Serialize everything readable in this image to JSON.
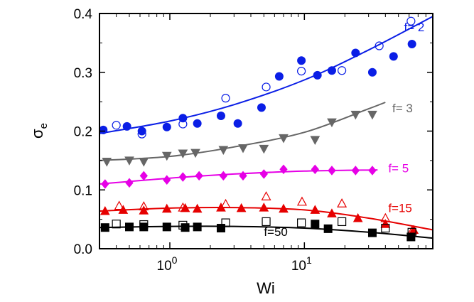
{
  "chart_data": {
    "type": "scatter",
    "title": "",
    "xlabel": "Wi",
    "ylabel_base": "σ",
    "ylabel_sub": "e",
    "x_scale": "log",
    "xlim": [
      0.3,
      90
    ],
    "ylim": [
      0,
      0.4
    ],
    "grid": false,
    "legend": "none",
    "x_tick_labels": [
      {
        "value": 1,
        "base": "10",
        "exp": "0"
      },
      {
        "value": 10,
        "base": "10",
        "exp": "1"
      }
    ],
    "y_ticks": [
      0.0,
      0.1,
      0.2,
      0.3,
      0.4
    ],
    "y_tick_labels": [
      "0.0",
      "0.1",
      "0.2",
      "0.3",
      "0.4"
    ],
    "series": [
      {
        "name": "f= 2",
        "color": "#0a1ee6",
        "label_at": [
          55,
          0.37
        ],
        "filled_marker": "circle",
        "filled": [
          [
            0.32,
            0.202
          ],
          [
            0.48,
            0.208
          ],
          [
            0.62,
            0.2
          ],
          [
            0.95,
            0.207
          ],
          [
            1.25,
            0.222
          ],
          [
            1.6,
            0.213
          ],
          [
            2.4,
            0.226
          ],
          [
            3.2,
            0.213
          ],
          [
            4.8,
            0.24
          ],
          [
            6.5,
            0.293
          ],
          [
            9.5,
            0.32
          ],
          [
            12.5,
            0.295
          ],
          [
            16,
            0.303
          ],
          [
            24,
            0.333
          ],
          [
            32,
            0.3
          ],
          [
            46,
            0.327
          ],
          [
            63,
            0.348
          ]
        ],
        "open_marker": "circle",
        "open": [
          [
            0.4,
            0.21
          ],
          [
            0.62,
            0.195
          ],
          [
            1.25,
            0.212
          ],
          [
            2.6,
            0.256
          ],
          [
            5.2,
            0.275
          ],
          [
            9.5,
            0.302
          ],
          [
            19,
            0.303
          ],
          [
            36,
            0.345
          ],
          [
            62,
            0.387
          ]
        ],
        "fit": [
          [
            0.3,
            0.196
          ],
          [
            1,
            0.217
          ],
          [
            3,
            0.245
          ],
          [
            10,
            0.287
          ],
          [
            30,
            0.338
          ],
          [
            90,
            0.395
          ]
        ]
      },
      {
        "name": "f= 3",
        "color": "#666666",
        "label_at": [
          45,
          0.232
        ],
        "filled_marker": "triangle-down",
        "filled": [
          [
            0.34,
            0.148
          ],
          [
            0.5,
            0.15
          ],
          [
            0.64,
            0.148
          ],
          [
            0.95,
            0.158
          ],
          [
            1.25,
            0.162
          ],
          [
            1.55,
            0.163
          ],
          [
            2.5,
            0.168
          ],
          [
            3.5,
            0.171
          ],
          [
            5,
            0.17
          ],
          [
            7,
            0.188
          ],
          [
            12,
            0.185
          ],
          [
            16,
            0.215
          ],
          [
            24,
            0.228
          ],
          [
            32,
            0.228
          ]
        ],
        "open_marker": "none",
        "open": [],
        "fit": [
          [
            0.3,
            0.15
          ],
          [
            1,
            0.157
          ],
          [
            3,
            0.173
          ],
          [
            10,
            0.198
          ],
          [
            30,
            0.238
          ],
          [
            40,
            0.249
          ]
        ]
      },
      {
        "name": "f= 5",
        "color": "#e600e6",
        "label_at": [
          42,
          0.13
        ],
        "filled_marker": "diamond",
        "filled": [
          [
            0.33,
            0.11
          ],
          [
            0.5,
            0.112
          ],
          [
            0.64,
            0.124
          ],
          [
            0.95,
            0.117
          ],
          [
            1.25,
            0.122
          ],
          [
            1.65,
            0.124
          ],
          [
            2.5,
            0.124
          ],
          [
            3.5,
            0.124
          ],
          [
            5,
            0.127
          ],
          [
            7,
            0.135
          ],
          [
            12,
            0.135
          ],
          [
            16,
            0.133
          ],
          [
            24,
            0.133
          ],
          [
            32,
            0.133
          ]
        ],
        "open_marker": "none",
        "open": [],
        "fit": [
          [
            0.3,
            0.11
          ],
          [
            1,
            0.12
          ],
          [
            3,
            0.127
          ],
          [
            10,
            0.132
          ],
          [
            35,
            0.134
          ]
        ]
      },
      {
        "name": "f=15",
        "color": "#e60000",
        "label_at": [
          42,
          0.062
        ],
        "filled_marker": "triangle",
        "filled": [
          [
            0.33,
            0.064
          ],
          [
            0.45,
            0.066
          ],
          [
            0.64,
            0.065
          ],
          [
            0.95,
            0.068
          ],
          [
            1.3,
            0.069
          ],
          [
            1.6,
            0.068
          ],
          [
            2.4,
            0.07
          ],
          [
            3.4,
            0.069
          ],
          [
            5,
            0.07
          ],
          [
            7,
            0.068
          ],
          [
            12,
            0.066
          ],
          [
            16,
            0.06
          ],
          [
            25,
            0.052
          ],
          [
            40,
            0.042
          ],
          [
            65,
            0.032
          ]
        ],
        "open_marker": "triangle",
        "open": [
          [
            0.42,
            0.073
          ],
          [
            0.64,
            0.072
          ],
          [
            1.25,
            0.07
          ],
          [
            2.6,
            0.076
          ],
          [
            5.2,
            0.089
          ],
          [
            9.6,
            0.08
          ],
          [
            19,
            0.077
          ],
          [
            40,
            0.052
          ],
          [
            63,
            0.03
          ]
        ],
        "fit": [
          [
            0.3,
            0.064
          ],
          [
            1,
            0.069
          ],
          [
            3,
            0.07
          ],
          [
            10,
            0.066
          ],
          [
            30,
            0.052
          ],
          [
            90,
            0.032
          ]
        ]
      },
      {
        "name": "f=50",
        "color": "#000000",
        "label_at": [
          5,
          0.022
        ],
        "filled_marker": "square",
        "filled": [
          [
            0.33,
            0.036
          ],
          [
            0.5,
            0.037
          ],
          [
            0.64,
            0.037
          ],
          [
            0.95,
            0.037
          ],
          [
            1.3,
            0.036
          ],
          [
            1.6,
            0.037
          ],
          [
            2.4,
            0.035
          ],
          [
            12,
            0.042
          ],
          [
            15,
            0.034
          ],
          [
            32,
            0.027
          ],
          [
            62,
            0.02
          ]
        ],
        "open_marker": "square",
        "open": [
          [
            0.4,
            0.042
          ],
          [
            0.64,
            0.041
          ],
          [
            1.25,
            0.04
          ],
          [
            2.6,
            0.044
          ],
          [
            5.2,
            0.046
          ],
          [
            9.5,
            0.044
          ],
          [
            19,
            0.046
          ],
          [
            40,
            0.035
          ],
          [
            63,
            0.028
          ]
        ],
        "fit": [
          [
            0.3,
            0.036
          ],
          [
            1,
            0.038
          ],
          [
            3,
            0.038
          ],
          [
            10,
            0.035
          ],
          [
            30,
            0.028
          ],
          [
            90,
            0.018
          ]
        ]
      }
    ]
  }
}
